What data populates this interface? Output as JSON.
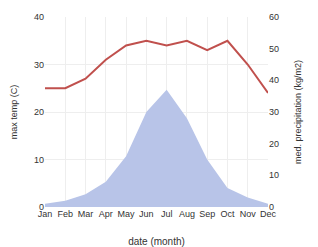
{
  "chart_data": {
    "type": "line",
    "categories": [
      "Jan",
      "Feb",
      "Mar",
      "Apr",
      "May",
      "Jun",
      "Jul",
      "Aug",
      "Sep",
      "Oct",
      "Nov",
      "Dec"
    ],
    "series": [
      {
        "type": "area",
        "color": "#b8c4e8",
        "axis": "y2",
        "values": [
          1,
          2,
          4,
          8,
          16,
          30,
          37,
          28,
          15,
          6,
          3,
          1
        ]
      },
      {
        "type": "line",
        "color": "#c0504d",
        "values": [
          25,
          25,
          27,
          31,
          34,
          35,
          34,
          35,
          33,
          35,
          30,
          24
        ]
      }
    ],
    "xlabel": "date (month)",
    "ylabel": "max temp (C)",
    "y2label": "med. precipitation (kg/m2)",
    "ylim": [
      0,
      40
    ],
    "yticks": [
      0,
      10,
      20,
      30,
      40
    ],
    "y2lim": [
      0,
      60
    ],
    "y2ticks": [
      0,
      10,
      20,
      30,
      40,
      50,
      60
    ],
    "grid": true
  }
}
